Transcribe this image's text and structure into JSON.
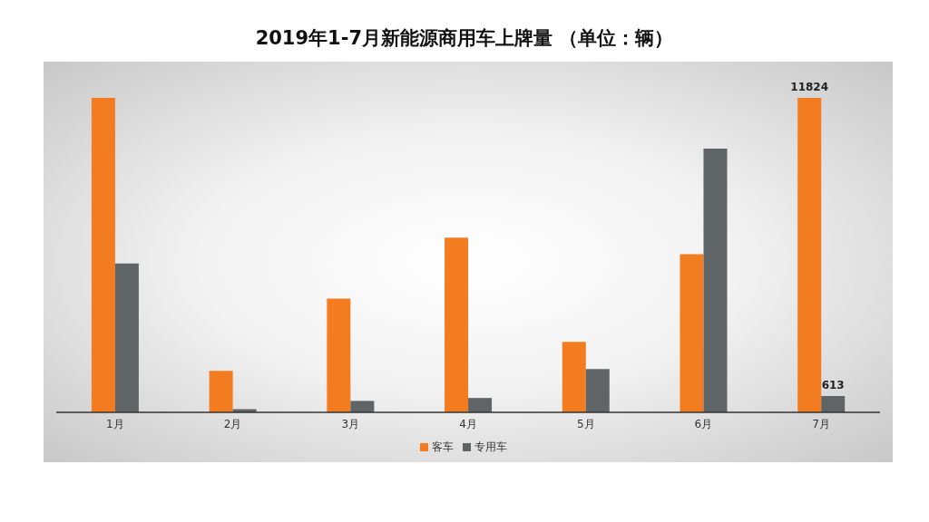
{
  "chart_data": {
    "type": "bar",
    "title": "2019年1-7月新能源商用车上牌量 （单位：辆）",
    "categories": [
      "1月",
      "2月",
      "3月",
      "4月",
      "5月",
      "6月",
      "7月"
    ],
    "legend": "bottom",
    "grid": false,
    "series": [
      {
        "name": "客车",
        "color": "#f47c20",
        "values": [
          11824,
          1560,
          4280,
          6570,
          2650,
          5950,
          11824
        ],
        "value_labels": [
          null,
          null,
          null,
          null,
          null,
          null,
          "11824"
        ]
      },
      {
        "name": "专用车",
        "color": "#5f6466",
        "values": [
          5600,
          120,
          430,
          540,
          1630,
          9920,
          613
        ],
        "value_labels": [
          null,
          null,
          null,
          null,
          null,
          null,
          "613"
        ]
      }
    ]
  }
}
